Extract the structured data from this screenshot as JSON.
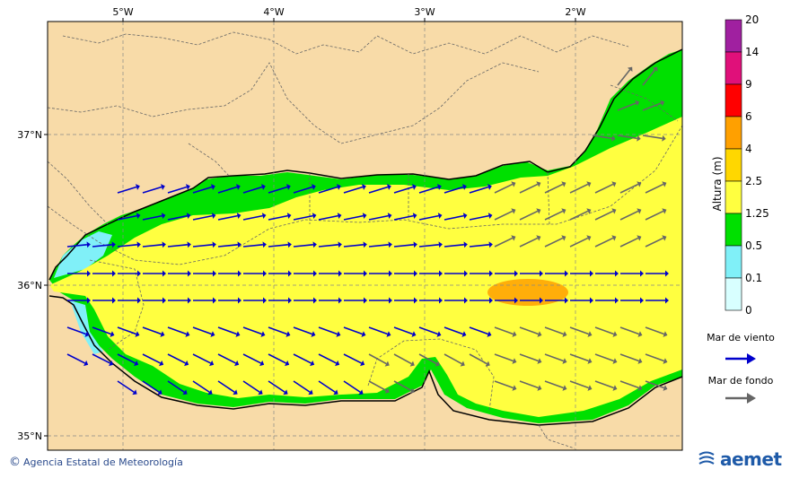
{
  "map": {
    "lon_labels": [
      "5°W",
      "4°W",
      "3°W",
      "2°W"
    ],
    "lat_labels": [
      "37°N",
      "36°N",
      "35°N"
    ]
  },
  "legend": {
    "title": "Altura (m)",
    "levels": [
      "20",
      "14",
      "9",
      "6",
      "4",
      "2.5",
      "1.25",
      "0.5",
      "0.1",
      "0"
    ],
    "colors": [
      "#a020a0",
      "#e0107a",
      "#ff0000",
      "#ffa000",
      "#ffd700",
      "#ffff40",
      "#00e000",
      "#80f0f8",
      "#d8ffff"
    ],
    "wind_sea_label": "Mar de viento",
    "swell_label": "Mar de fondo",
    "wind_sea_color": "#0000cc",
    "swell_color": "#666666"
  },
  "footer": {
    "agency": "Agencia Estatal de Meteorología",
    "logo": "aemet"
  },
  "colors": {
    "land": "#f8dba8",
    "sea_high": "#ffff40",
    "sea_mid": "#00e000",
    "sea_low": "#80f0f8",
    "sea_peak": "#ffa000"
  }
}
